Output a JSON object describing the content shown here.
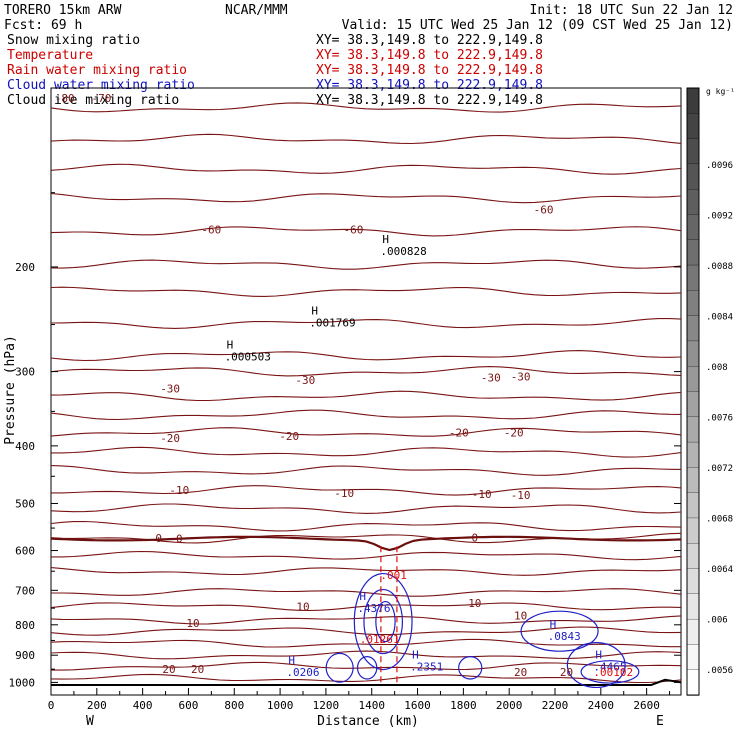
{
  "header": {
    "model": "TORERO  15km ARW",
    "org": "NCAR/MMM",
    "init": "Init: 18 UTC Sun 22 Jan 12",
    "fcst": "Fcst:   69 h",
    "valid": "Valid: 15 UTC Wed 25 Jan 12 (09 CST Wed 25 Jan 12)"
  },
  "fields": [
    {
      "label": "Snow mixing ratio",
      "xy": "",
      "color": "#000000"
    },
    {
      "label": "Temperature",
      "xy": "XY=  38.3,149.8 to 222.9,149.8",
      "color": "#cc0000"
    },
    {
      "label": "Rain water mixing ratio",
      "xy": "XY=  38.3,149.8 to 222.9,149.8",
      "color": "#cc0000"
    },
    {
      "label": "Cloud water mixing ratio",
      "xy": "XY=  38.3,149.8 to 222.9,149.8",
      "color": "#1010c0"
    },
    {
      "label": "Cloud ice mixing ratio",
      "xy": "XY=  38.3,149.8 to 222.9,149.8",
      "color": "#000000"
    }
  ],
  "top_xy": "XY=  38.3,149.8 to 222.9,149.8",
  "colorbar": {
    "unit": "g kg⁻¹",
    "ticks": [
      ".0096",
      ".0092",
      ".0088",
      ".0084",
      ".008",
      ".0076",
      ".0072",
      ".0068",
      ".0064",
      ".006",
      ".0056"
    ]
  },
  "chart_data": {
    "type": "contour-cross-section",
    "title": "",
    "xlabel": "Distance (km)",
    "ylabel": "Pressure (hPa)",
    "xlim": [
      0,
      2750
    ],
    "ylim": [
      1050,
      100
    ],
    "y_scale": "log",
    "x_ticks": [
      "0",
      "200",
      "400",
      "600",
      "800",
      "1000",
      "1200",
      "1400",
      "1600",
      "1800",
      "2000",
      "2200",
      "2400",
      "2600"
    ],
    "x_tick_values": [
      0,
      200,
      400,
      600,
      800,
      1000,
      1200,
      1400,
      1600,
      1800,
      2000,
      2200,
      2400,
      2600
    ],
    "y_ticks": [
      "200",
      "300",
      "400",
      "500",
      "600",
      "700",
      "800",
      "900",
      "1000"
    ],
    "y_tick_values": [
      200,
      300,
      400,
      500,
      600,
      700,
      800,
      900,
      1000
    ],
    "x_ends": [
      "W",
      "E"
    ],
    "temperature_labels": [
      {
        "t": "-80",
        "x": 60,
        "p": 104
      },
      {
        "t": "-70",
        "x": 220,
        "p": 104
      },
      {
        "t": "-60",
        "x": 700,
        "p": 173
      },
      {
        "t": "-60",
        "x": 1320,
        "p": 173
      },
      {
        "t": "-60",
        "x": 2150,
        "p": 160
      },
      {
        "t": "-30",
        "x": 520,
        "p": 320
      },
      {
        "t": "-30",
        "x": 1110,
        "p": 310
      },
      {
        "t": "-30",
        "x": 1920,
        "p": 307
      },
      {
        "t": "-30",
        "x": 2050,
        "p": 306
      },
      {
        "t": "-20",
        "x": 520,
        "p": 388
      },
      {
        "t": "-20",
        "x": 1040,
        "p": 385
      },
      {
        "t": "-20",
        "x": 1780,
        "p": 380
      },
      {
        "t": "-20",
        "x": 2020,
        "p": 380
      },
      {
        "t": "-10",
        "x": 560,
        "p": 475
      },
      {
        "t": "-10",
        "x": 1280,
        "p": 480
      },
      {
        "t": "-10",
        "x": 1880,
        "p": 482
      },
      {
        "t": "-10",
        "x": 2050,
        "p": 484
      },
      {
        "t": "0",
        "x": 470,
        "p": 572
      },
      {
        "t": "0",
        "x": 560,
        "p": 573
      },
      {
        "t": "0",
        "x": 1850,
        "p": 570
      },
      {
        "t": "10",
        "x": 1100,
        "p": 745
      },
      {
        "t": "10",
        "x": 1850,
        "p": 735
      },
      {
        "t": "10",
        "x": 2050,
        "p": 772
      },
      {
        "t": "10",
        "x": 620,
        "p": 795
      },
      {
        "t": "20",
        "x": 515,
        "p": 950
      },
      {
        "t": "20",
        "x": 640,
        "p": 950
      },
      {
        "t": "20",
        "x": 2050,
        "p": 960
      },
      {
        "t": "20",
        "x": 2250,
        "p": 960
      }
    ],
    "maxima": [
      {
        "field": "Snow mixing ratio",
        "value": ".000503",
        "x": 810,
        "p": 283
      },
      {
        "field": "Snow mixing ratio",
        "value": ".001769",
        "x": 1180,
        "p": 248
      },
      {
        "field": "Snow mixing ratio",
        "value": ".000828",
        "x": 1490,
        "p": 188
      },
      {
        "field": "Rain water mixing ratio",
        "value": ".001",
        "x": 1490,
        "p": 660
      },
      {
        "field": "Rain water mixing ratio",
        "value": ".01261",
        "x": 1400,
        "p": 845
      },
      {
        "field": "Cloud water mixing ratio",
        "value": ".4376",
        "x": 1390,
        "p": 750
      },
      {
        "field": "Cloud water mixing ratio",
        "value": ".0843",
        "x": 2220,
        "p": 835
      },
      {
        "field": "Cloud water mixing ratio",
        "value": ".0206",
        "x": 1080,
        "p": 960
      },
      {
        "field": "Cloud water mixing ratio",
        "value": ".2351",
        "x": 1620,
        "p": 940
      },
      {
        "field": "Cloud water mixing ratio",
        "value": ".4465",
        "x": 2420,
        "p": 940
      },
      {
        "field": "Rain water mixing ratio",
        "value": ".00102",
        "x": 2420,
        "p": 960
      }
    ]
  }
}
